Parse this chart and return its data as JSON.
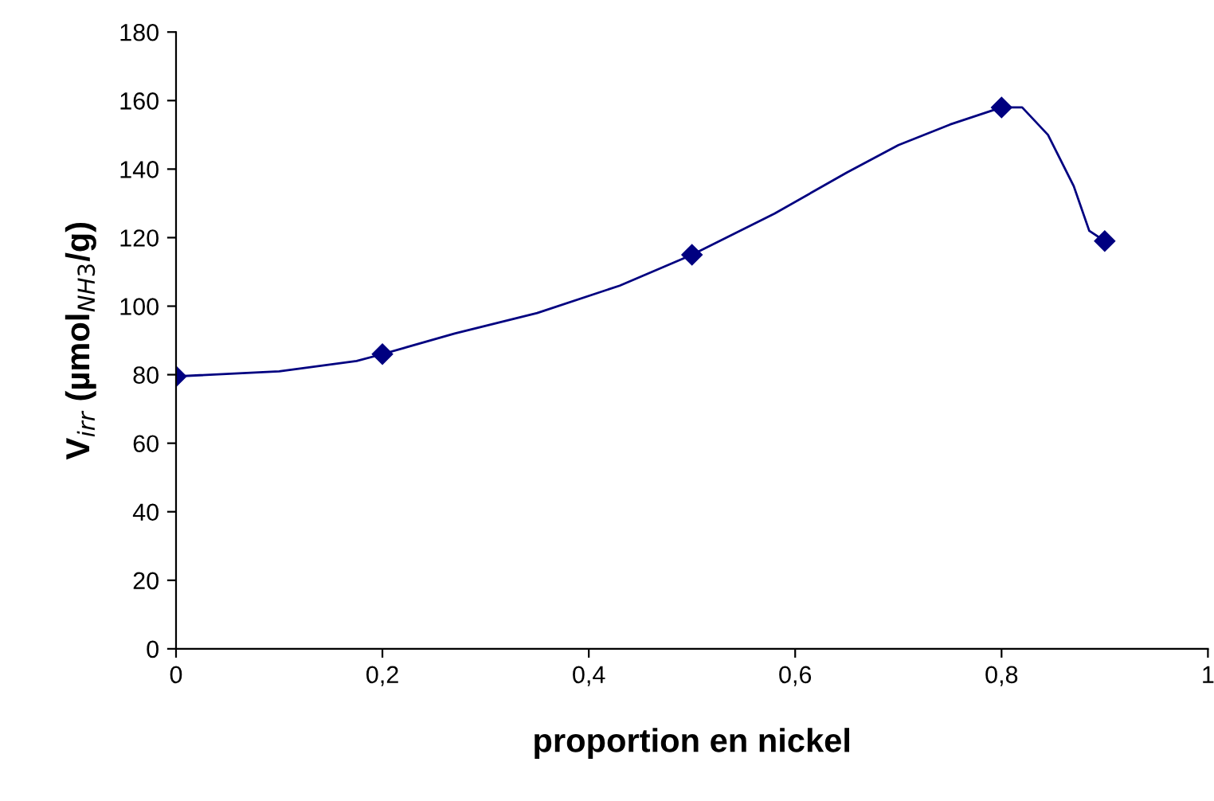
{
  "chart_data": {
    "type": "line",
    "xlabel": "proportion en nickel",
    "ylabel": "V$_{irr}$ (µmol$_{NH3}$/g)",
    "x": [
      0,
      0.2,
      0.5,
      0.8,
      0.9
    ],
    "series": [
      {
        "color": "#000080",
        "x": [
          0,
          0.1,
          0.175,
          0.2,
          0.27,
          0.35,
          0.43,
          0.5,
          0.58,
          0.65,
          0.7,
          0.75,
          0.8,
          0.82,
          0.845,
          0.87,
          0.885,
          0.9
        ],
        "values": [
          79.5,
          81,
          84,
          86,
          92,
          98,
          106,
          115,
          127,
          139,
          147,
          153,
          158,
          158,
          150,
          135,
          122,
          119
        ]
      },
      {
        "type": "scatter",
        "marker": "diamond",
        "color": "#000080",
        "values": [
          79.5,
          86,
          115,
          158,
          119
        ]
      }
    ],
    "line_style": "solid",
    "xlim": [
      0,
      1
    ],
    "xticks": [
      0,
      {
        "value": 0.2,
        "label": "0,2"
      },
      {
        "value": 0.4,
        "label": "0,4"
      },
      {
        "value": 0.6,
        "label": "0,6"
      },
      {
        "value": 0.8,
        "label": "0,8"
      },
      1
    ],
    "ylim": [
      0,
      180
    ],
    "yticks": [
      0,
      20,
      40,
      60,
      80,
      100,
      120,
      140,
      160,
      180
    ],
    "grid": false,
    "legend": false
  }
}
